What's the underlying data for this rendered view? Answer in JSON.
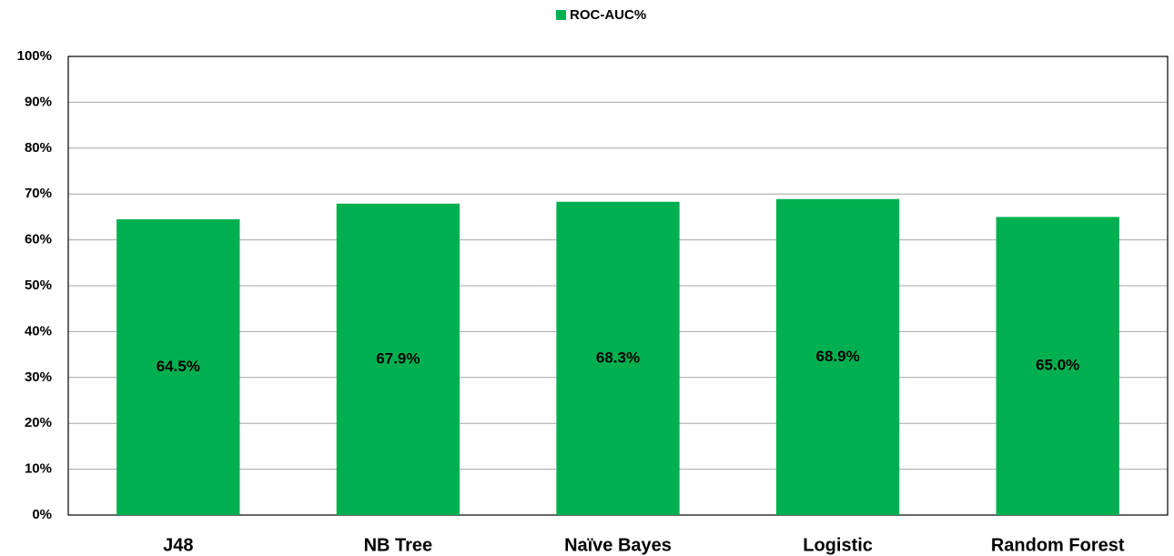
{
  "chart_data": {
    "type": "bar",
    "categories": [
      "J48",
      "NB Tree",
      "Naïve Bayes",
      "Logistic",
      "Random Forest"
    ],
    "series": [
      {
        "name": "ROC-AUC%",
        "color": "#00b050",
        "values": [
          64.5,
          67.9,
          68.3,
          68.9,
          65.0
        ],
        "value_labels": [
          "64.5%",
          "67.9%",
          "68.3%",
          "68.9%",
          "65.0%"
        ]
      }
    ],
    "ylim": [
      0,
      100
    ],
    "yticks": [
      {
        "value": 0,
        "label": "0%"
      },
      {
        "value": 10,
        "label": "10%"
      },
      {
        "value": 20,
        "label": "20%"
      },
      {
        "value": 30,
        "label": "30%"
      },
      {
        "value": 40,
        "label": "40%"
      },
      {
        "value": 50,
        "label": "50%"
      },
      {
        "value": 60,
        "label": "60%"
      },
      {
        "value": 70,
        "label": "70%"
      },
      {
        "value": 80,
        "label": "80%"
      },
      {
        "value": 90,
        "label": "90%"
      },
      {
        "value": 100,
        "label": "100%"
      }
    ],
    "grid": true,
    "legend": "top"
  }
}
